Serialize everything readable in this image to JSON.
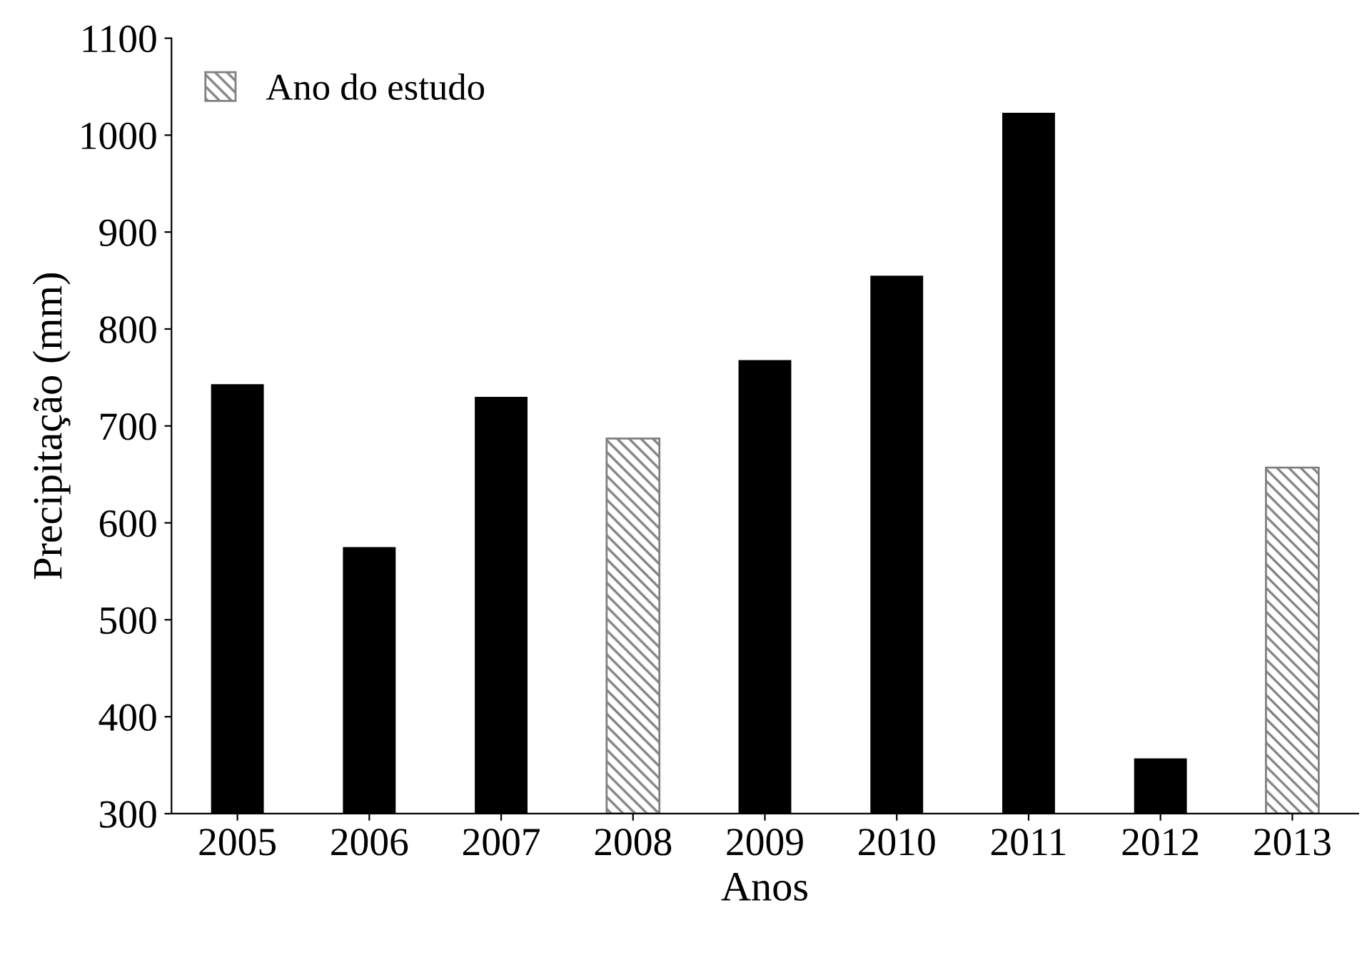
{
  "chart_data": {
    "type": "bar",
    "xlabel": "Anos",
    "ylabel": "Precipitação (mm)",
    "categories": [
      "2005",
      "2006",
      "2007",
      "2008",
      "2009",
      "2010",
      "2011",
      "2012",
      "2013"
    ],
    "series": [
      {
        "color": "#000000",
        "values": [
          743,
          575,
          730,
          null,
          768,
          855,
          1023,
          357,
          null
        ]
      },
      {
        "name": "Ano do estudo",
        "color": "#808080",
        "values": [
          null,
          null,
          null,
          687,
          null,
          null,
          null,
          null,
          657
        ]
      }
    ],
    "ylim": [
      300,
      1100
    ],
    "yticks": [
      300,
      400,
      500,
      600,
      700,
      800,
      900,
      1000,
      1100
    ],
    "legend": "top left",
    "grid": false
  }
}
